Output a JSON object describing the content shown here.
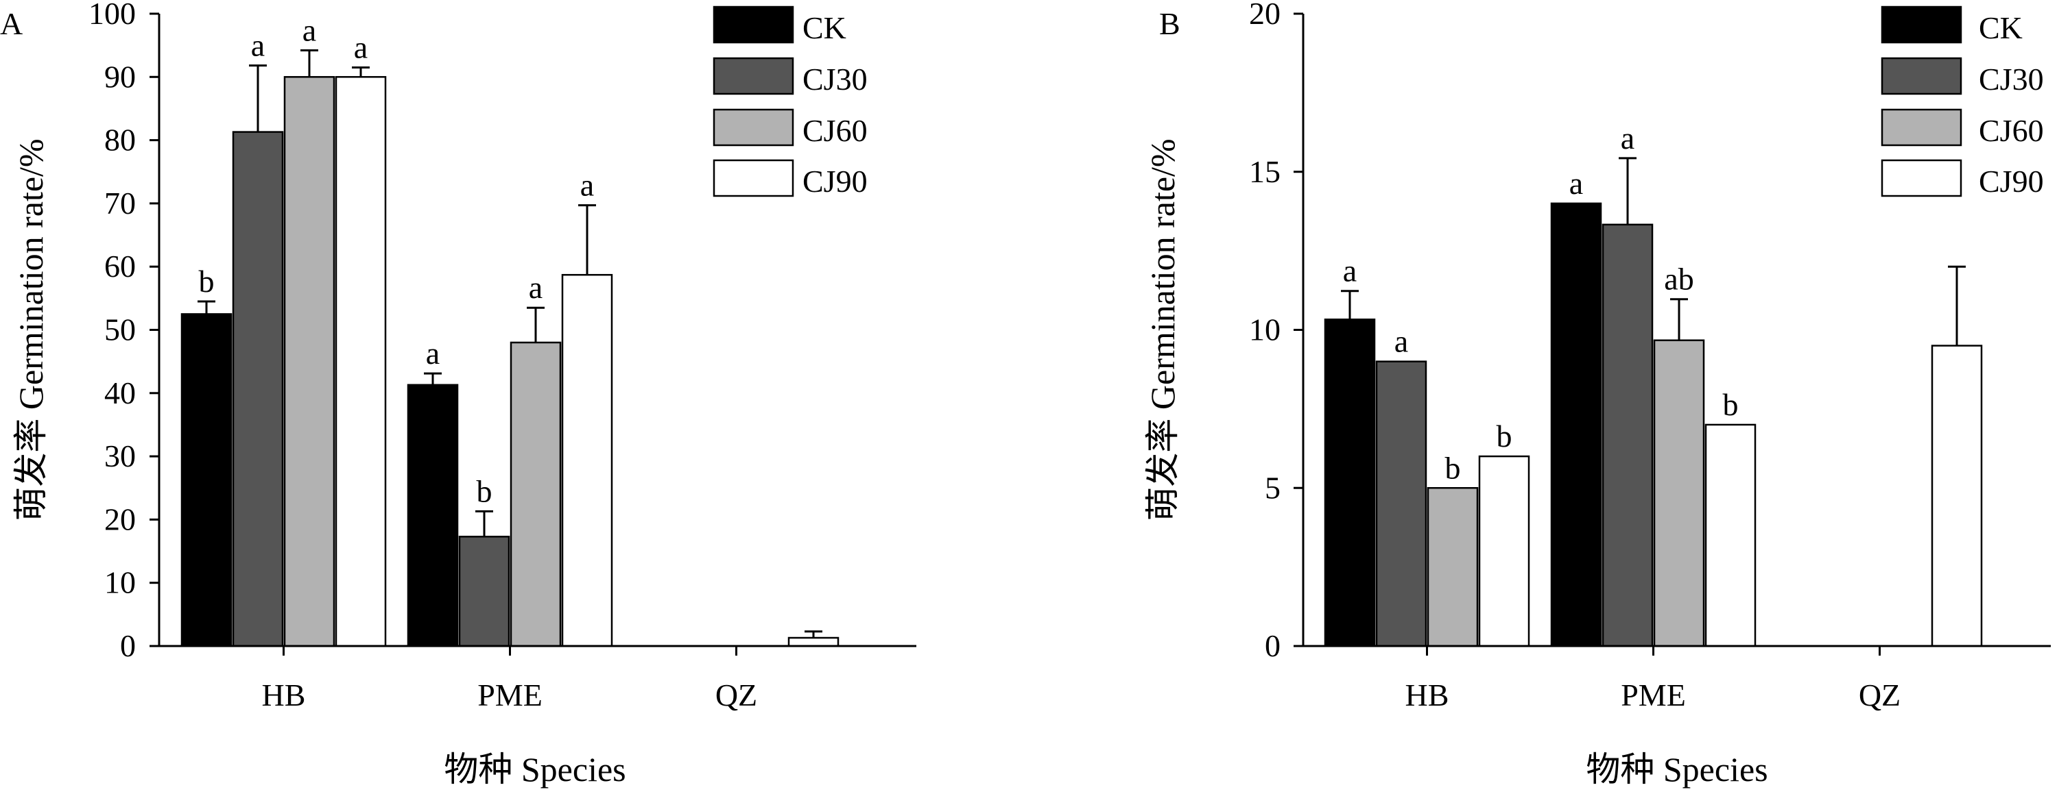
{
  "chart_data": [
    {
      "type": "bar",
      "panel_label": "A",
      "categories": [
        "HB",
        "PME",
        "QZ"
      ],
      "ylabel": "萌发率 Germination rate/%",
      "xlabel": "物种 Species",
      "ylim": [
        0,
        100
      ],
      "yticks": [
        "0",
        "10",
        "20",
        "30",
        "40",
        "50",
        "60",
        "70",
        "80",
        "90",
        "100"
      ],
      "legend_position": "top-right",
      "series": [
        {
          "name": "CK",
          "color": "#000000",
          "values": [
            52.5,
            41.3,
            0
          ],
          "errors": [
            2.0,
            1.8,
            0
          ],
          "labels": [
            "b",
            "a",
            ""
          ]
        },
        {
          "name": "CJ30",
          "color": "#555555",
          "values": [
            81.3,
            17.3,
            0
          ],
          "errors": [
            10.5,
            4.0,
            0
          ],
          "labels": [
            "a",
            "b",
            ""
          ]
        },
        {
          "name": "CJ60",
          "color": "#b2b2b2",
          "values": [
            90.0,
            48.0,
            0
          ],
          "errors": [
            4.2,
            5.5,
            0
          ],
          "labels": [
            "a",
            "a",
            ""
          ]
        },
        {
          "name": "CJ90",
          "color": "#ffffff",
          "values": [
            90.0,
            58.7,
            1.3
          ],
          "errors": [
            1.5,
            11.0,
            1.0
          ],
          "labels": [
            "a",
            "a",
            ""
          ]
        }
      ]
    },
    {
      "type": "bar",
      "panel_label": "B",
      "categories": [
        "HB",
        "PME",
        "QZ"
      ],
      "ylabel": "萌发率 Germination rate/%",
      "xlabel": "物种 Species",
      "ylim": [
        0,
        20
      ],
      "yticks": [
        "0",
        "5",
        "10",
        "15",
        "20"
      ],
      "legend_position": "top-right",
      "series": [
        {
          "name": "CK",
          "color": "#000000",
          "values": [
            10.33,
            14.0,
            0
          ],
          "errors": [
            0.9,
            0,
            0
          ],
          "labels": [
            "a",
            "a",
            ""
          ]
        },
        {
          "name": "CJ30",
          "color": "#555555",
          "values": [
            9.0,
            13.33,
            0
          ],
          "errors": [
            0,
            2.1,
            0
          ],
          "labels": [
            "a",
            "a",
            ""
          ]
        },
        {
          "name": "CJ60",
          "color": "#b2b2b2",
          "values": [
            5.0,
            9.67,
            0
          ],
          "errors": [
            0,
            1.3,
            0
          ],
          "labels": [
            "b",
            "ab",
            ""
          ]
        },
        {
          "name": "CJ90",
          "color": "#ffffff",
          "values": [
            6.0,
            7.0,
            9.5
          ],
          "errors": [
            0,
            0,
            2.5
          ],
          "labels": [
            "b",
            "b",
            ""
          ]
        }
      ]
    }
  ]
}
